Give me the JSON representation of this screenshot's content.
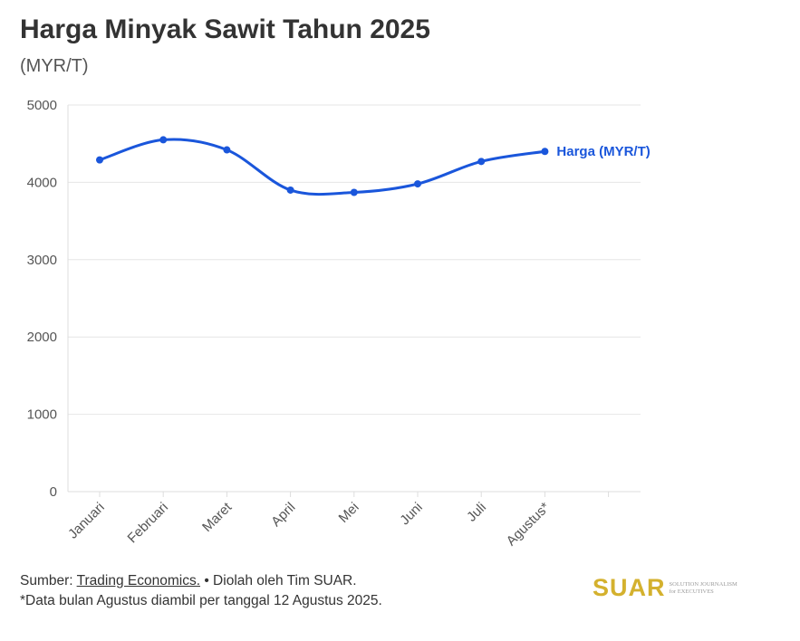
{
  "title": "Harga Minyak Sawit Tahun 2025",
  "subtitle": "(MYR/T)",
  "footer": {
    "source_prefix": "Sumber: ",
    "source_link": "Trading Economics.",
    "source_suffix": " • Diolah oleh Tim SUAR.",
    "note": "*Data bulan Agustus diambil per tanggal 12 Agustus 2025."
  },
  "logo": {
    "word": "SUAR",
    "tagline_1": "SOLUTION JOURNALISM",
    "tagline_2": "for EXECUTIVES"
  },
  "colors": {
    "series": "#1a56db",
    "grid": "#e6e6e6",
    "axis_text": "#555555",
    "logo": "#d4b12e"
  },
  "chart_data": {
    "type": "line",
    "categories": [
      "Januari",
      "Februari",
      "Maret",
      "April",
      "Mei",
      "Juni",
      "Juli",
      "Agustus*"
    ],
    "series": [
      {
        "name": "Harga (MYR/T)",
        "values": [
          4290,
          4550,
          4420,
          3900,
          3870,
          3980,
          4270,
          4400
        ]
      }
    ],
    "ylim": [
      0,
      5000
    ],
    "yticks": [
      0,
      1000,
      2000,
      3000,
      4000,
      5000
    ],
    "grid": true,
    "smooth": true
  }
}
